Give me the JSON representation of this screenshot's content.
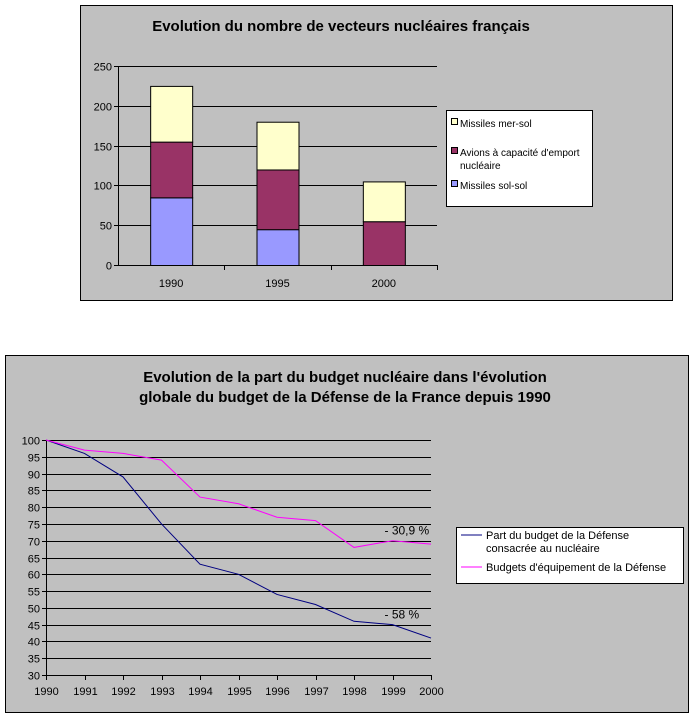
{
  "chart_data": [
    {
      "type": "bar",
      "stacked": true,
      "title": "Evolution du nombre de vecteurs nucléaires français",
      "categories": [
        "1990",
        "1995",
        "2000"
      ],
      "series": [
        {
          "name": "Missiles sol-sol",
          "values": [
            85,
            45,
            0
          ],
          "color": "#9999ff"
        },
        {
          "name": "Avions à capacité d'emport nucléaire",
          "values": [
            70,
            75,
            55
          ],
          "color": "#993366"
        },
        {
          "name": "Missiles mer-sol",
          "values": [
            70,
            60,
            50
          ],
          "color": "#ffffcc"
        }
      ],
      "legend_order": [
        "Missiles mer-sol",
        "Avions à capacité d'emport nucléaire",
        "Missiles sol-sol"
      ],
      "legend_lines": [
        [
          "Missiles mer-sol"
        ],
        [
          "Avions à capacité d'emport",
          "nucléaire"
        ],
        [
          "Missiles sol-sol"
        ]
      ],
      "ylim": [
        0,
        250
      ],
      "yticks": [
        0,
        50,
        100,
        150,
        200,
        250
      ],
      "grid": true,
      "legend": "right"
    },
    {
      "type": "line",
      "title_lines": [
        "Evolution de la part du budget nucléaire dans l'évolution",
        "globale du budget de la Défense de la France depuis 1990"
      ],
      "x": [
        "1990",
        "1991",
        "1992",
        "1993",
        "1994",
        "1995",
        "1996",
        "1997",
        "1998",
        "1999",
        "2000"
      ],
      "series": [
        {
          "name": "Part du budget de la Défense consacrée au nucléaire",
          "legend_lines": [
            "Part du budget de la Défense",
            "consacrée au nucléaire"
          ],
          "values": [
            100,
            96,
            89,
            75,
            63,
            60,
            54,
            51,
            46,
            45,
            41
          ],
          "color": "#000080"
        },
        {
          "name": "Budgets d'équipement de la Défense",
          "legend_lines": [
            "Budgets d'équipement de la Défense"
          ],
          "values": [
            100,
            97,
            96,
            94,
            83,
            81,
            77,
            76,
            68,
            70,
            69
          ],
          "color": "#ff00ff"
        }
      ],
      "annotations": [
        {
          "text": "- 30,9 %",
          "x": "1999",
          "y": 70
        },
        {
          "text": "- 58 %",
          "x": "1999",
          "y": 45
        }
      ],
      "ylim": [
        30,
        100
      ],
      "yticks": [
        30,
        35,
        40,
        45,
        50,
        55,
        60,
        65,
        70,
        75,
        80,
        85,
        90,
        95,
        100
      ],
      "grid": true,
      "legend": "right"
    }
  ]
}
